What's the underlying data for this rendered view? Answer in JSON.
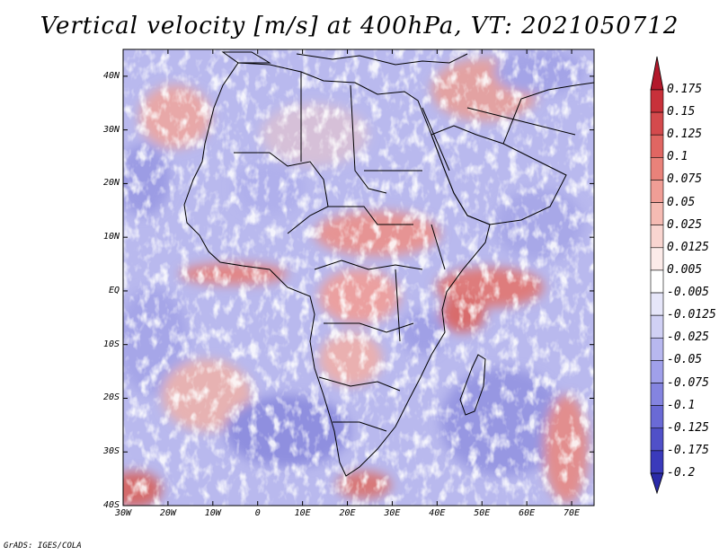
{
  "title": "Vertical velocity [m/s] at 400hPa, VT: 2021050712",
  "credit": "GrADS: IGES/COLA",
  "map": {
    "region": "Africa and Arabian Peninsula",
    "lat_labels": [
      "40N",
      "30N",
      "20N",
      "10N",
      "EQ",
      "10S",
      "20S",
      "30S",
      "40S"
    ],
    "lat_values": [
      40,
      30,
      20,
      10,
      0,
      -10,
      -20,
      -30,
      -40
    ],
    "lon_labels": [
      "30W",
      "20W",
      "10W",
      "0",
      "10E",
      "20E",
      "30E",
      "40E",
      "50E",
      "60E",
      "70E"
    ],
    "lon_values": [
      -30,
      -20,
      -10,
      0,
      10,
      20,
      30,
      40,
      50,
      60,
      70
    ],
    "lat_range": [
      -40,
      45
    ],
    "lon_range": [
      -30,
      75
    ]
  },
  "colorbar": {
    "levels": [
      "0.175",
      "0.15",
      "0.125",
      "0.1",
      "0.075",
      "0.05",
      "0.025",
      "0.0125",
      "0.005",
      "-0.005",
      "-0.0125",
      "-0.025",
      "-0.05",
      "-0.075",
      "-0.1",
      "-0.125",
      "-0.175",
      "-0.2"
    ],
    "colors": [
      "#b2182b",
      "#c8313a",
      "#d44a4d",
      "#e06662",
      "#e9827a",
      "#f09e96",
      "#f5bbb3",
      "#f9d5d0",
      "#fcebe9",
      "#ffffff",
      "#e6e6f9",
      "#d0d0f4",
      "#b8b8ef",
      "#a0a0ea",
      "#8484e0",
      "#6a6ad5",
      "#5050c8",
      "#3a3abb",
      "#2a2aa8"
    ]
  },
  "colors": {
    "land_outline": "#000000",
    "frame": "#000000"
  }
}
